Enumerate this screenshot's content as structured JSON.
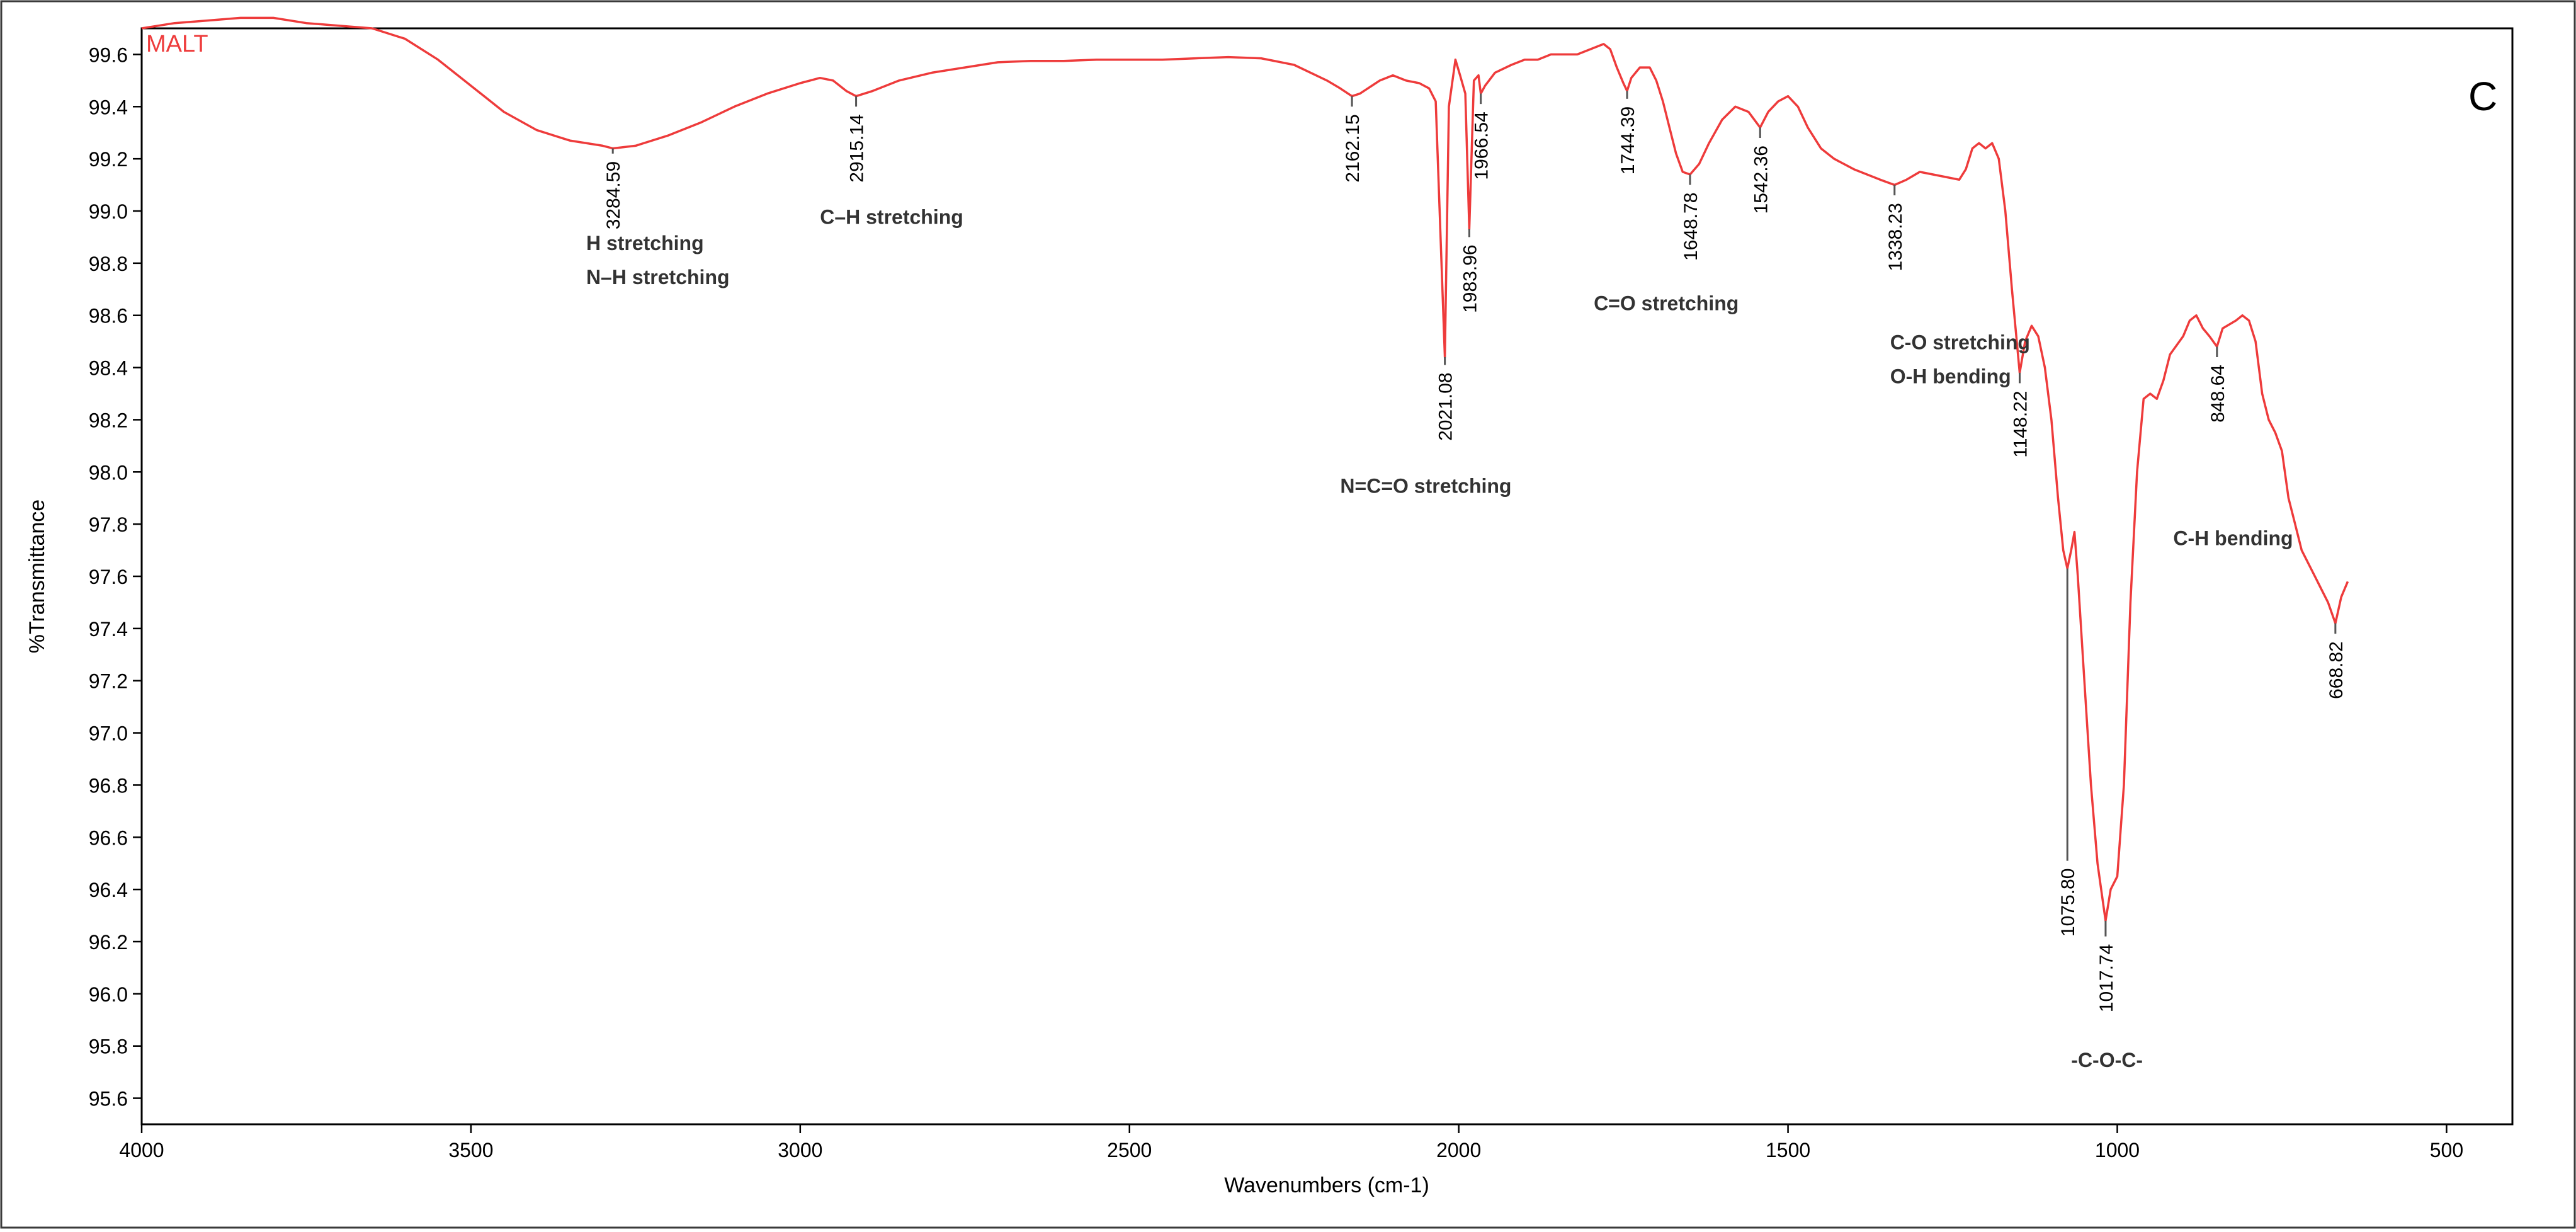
{
  "chart_data": {
    "type": "line",
    "title": "MALT",
    "panel_label": "C",
    "xlabel": "Wavenumbers (cm-1)",
    "ylabel": "%Transmittance",
    "xlim": [
      4000,
      400
    ],
    "ylim": [
      95.5,
      99.7
    ],
    "x_ticks": [
      4000,
      3500,
      3000,
      2500,
      2000,
      1500,
      1000,
      500
    ],
    "y_ticks": [
      "95.6",
      "95.8",
      "96.0",
      "96.2",
      "96.4",
      "96.6",
      "96.8",
      "97.0",
      "97.2",
      "97.4",
      "97.6",
      "97.8",
      "98.0",
      "98.2",
      "98.4",
      "98.6",
      "98.8",
      "99.0",
      "99.2",
      "99.4",
      "99.6"
    ],
    "grid": false,
    "series": [
      {
        "name": "MALT",
        "color": "#ee3b3b",
        "points": [
          [
            4000,
            99.7
          ],
          [
            3950,
            99.72
          ],
          [
            3900,
            99.73
          ],
          [
            3850,
            99.74
          ],
          [
            3800,
            99.74
          ],
          [
            3750,
            99.72
          ],
          [
            3700,
            99.71
          ],
          [
            3650,
            99.7
          ],
          [
            3600,
            99.66
          ],
          [
            3550,
            99.58
          ],
          [
            3500,
            99.48
          ],
          [
            3450,
            99.38
          ],
          [
            3400,
            99.31
          ],
          [
            3350,
            99.27
          ],
          [
            3300,
            99.25
          ],
          [
            3284.59,
            99.24
          ],
          [
            3250,
            99.25
          ],
          [
            3200,
            99.29
          ],
          [
            3150,
            99.34
          ],
          [
            3100,
            99.4
          ],
          [
            3050,
            99.45
          ],
          [
            3000,
            99.49
          ],
          [
            2970,
            99.51
          ],
          [
            2950,
            99.5
          ],
          [
            2930,
            99.46
          ],
          [
            2915.14,
            99.44
          ],
          [
            2890,
            99.46
          ],
          [
            2850,
            99.5
          ],
          [
            2800,
            99.53
          ],
          [
            2750,
            99.55
          ],
          [
            2700,
            99.57
          ],
          [
            2650,
            99.575
          ],
          [
            2600,
            99.575
          ],
          [
            2550,
            99.58
          ],
          [
            2500,
            99.58
          ],
          [
            2450,
            99.58
          ],
          [
            2400,
            99.585
          ],
          [
            2350,
            99.59
          ],
          [
            2300,
            99.585
          ],
          [
            2250,
            99.56
          ],
          [
            2200,
            99.5
          ],
          [
            2180,
            99.47
          ],
          [
            2162.15,
            99.44
          ],
          [
            2150,
            99.45
          ],
          [
            2120,
            99.5
          ],
          [
            2100,
            99.52
          ],
          [
            2080,
            99.5
          ],
          [
            2060,
            99.49
          ],
          [
            2045,
            99.47
          ],
          [
            2035,
            99.42
          ],
          [
            2021.08,
            98.44
          ],
          [
            2015,
            99.4
          ],
          [
            2005,
            99.58
          ],
          [
            1998,
            99.52
          ],
          [
            1990,
            99.45
          ],
          [
            1983.96,
            98.93
          ],
          [
            1977,
            99.5
          ],
          [
            1970,
            99.52
          ],
          [
            1966.54,
            99.45
          ],
          [
            1960,
            99.48
          ],
          [
            1945,
            99.53
          ],
          [
            1920,
            99.56
          ],
          [
            1900,
            99.58
          ],
          [
            1880,
            99.58
          ],
          [
            1860,
            99.6
          ],
          [
            1840,
            99.6
          ],
          [
            1820,
            99.6
          ],
          [
            1800,
            99.62
          ],
          [
            1780,
            99.64
          ],
          [
            1770,
            99.62
          ],
          [
            1760,
            99.55
          ],
          [
            1750,
            99.49
          ],
          [
            1744.39,
            99.46
          ],
          [
            1738,
            99.51
          ],
          [
            1725,
            99.55
          ],
          [
            1710,
            99.55
          ],
          [
            1700,
            99.5
          ],
          [
            1690,
            99.42
          ],
          [
            1680,
            99.32
          ],
          [
            1670,
            99.22
          ],
          [
            1660,
            99.15
          ],
          [
            1648.78,
            99.14
          ],
          [
            1635,
            99.18
          ],
          [
            1620,
            99.26
          ],
          [
            1600,
            99.35
          ],
          [
            1580,
            99.4
          ],
          [
            1560,
            99.38
          ],
          [
            1542.36,
            99.32
          ],
          [
            1530,
            99.38
          ],
          [
            1515,
            99.42
          ],
          [
            1500,
            99.44
          ],
          [
            1485,
            99.4
          ],
          [
            1470,
            99.32
          ],
          [
            1450,
            99.24
          ],
          [
            1430,
            99.2
          ],
          [
            1400,
            99.16
          ],
          [
            1380,
            99.14
          ],
          [
            1360,
            99.12
          ],
          [
            1338.23,
            99.1
          ],
          [
            1320,
            99.12
          ],
          [
            1300,
            99.15
          ],
          [
            1280,
            99.14
          ],
          [
            1260,
            99.13
          ],
          [
            1240,
            99.12
          ],
          [
            1230,
            99.16
          ],
          [
            1220,
            99.24
          ],
          [
            1210,
            99.26
          ],
          [
            1200,
            99.24
          ],
          [
            1190,
            99.26
          ],
          [
            1180,
            99.2
          ],
          [
            1170,
            99.0
          ],
          [
            1160,
            98.7
          ],
          [
            1148.22,
            98.38
          ],
          [
            1140,
            98.5
          ],
          [
            1130,
            98.56
          ],
          [
            1120,
            98.52
          ],
          [
            1110,
            98.4
          ],
          [
            1100,
            98.2
          ],
          [
            1090,
            97.9
          ],
          [
            1082,
            97.7
          ],
          [
            1075.8,
            97.63
          ],
          [
            1070,
            97.7
          ],
          [
            1065,
            97.77
          ],
          [
            1060,
            97.6
          ],
          [
            1050,
            97.2
          ],
          [
            1040,
            96.8
          ],
          [
            1030,
            96.5
          ],
          [
            1017.74,
            96.28
          ],
          [
            1010,
            96.4
          ],
          [
            1000,
            96.45
          ],
          [
            990,
            96.8
          ],
          [
            980,
            97.5
          ],
          [
            970,
            98.0
          ],
          [
            960,
            98.28
          ],
          [
            950,
            98.3
          ],
          [
            940,
            98.28
          ],
          [
            930,
            98.35
          ],
          [
            920,
            98.45
          ],
          [
            900,
            98.52
          ],
          [
            890,
            98.58
          ],
          [
            880,
            98.6
          ],
          [
            870,
            98.55
          ],
          [
            860,
            98.52
          ],
          [
            848.64,
            98.48
          ],
          [
            840,
            98.55
          ],
          [
            820,
            98.58
          ],
          [
            810,
            98.6
          ],
          [
            800,
            98.58
          ],
          [
            790,
            98.5
          ],
          [
            780,
            98.3
          ],
          [
            770,
            98.2
          ],
          [
            760,
            98.15
          ],
          [
            750,
            98.08
          ],
          [
            740,
            97.9
          ],
          [
            730,
            97.8
          ],
          [
            720,
            97.7
          ],
          [
            700,
            97.6
          ],
          [
            690,
            97.55
          ],
          [
            680,
            97.5
          ],
          [
            668.82,
            97.42
          ],
          [
            660,
            97.52
          ],
          [
            650,
            97.58
          ]
        ]
      }
    ],
    "peaks": [
      {
        "x": 3284.59,
        "label": "3284.59",
        "line_to": 99.22
      },
      {
        "x": 2915.14,
        "label": "2915.14",
        "line_to": 99.4
      },
      {
        "x": 2162.15,
        "label": "2162.15",
        "line_to": 99.4
      },
      {
        "x": 2021.08,
        "label": "2021.08",
        "line_to": 98.41
      },
      {
        "x": 1983.96,
        "label": "1983.96",
        "line_to": 98.9
      },
      {
        "x": 1966.54,
        "label": "1966.54",
        "line_to": 99.41
      },
      {
        "x": 1744.39,
        "label": "1744.39",
        "line_to": 99.43
      },
      {
        "x": 1648.78,
        "label": "1648.78",
        "line_to": 99.1
      },
      {
        "x": 1542.36,
        "label": "1542.36",
        "line_to": 99.28
      },
      {
        "x": 1338.23,
        "label": "1338.23",
        "line_to": 99.06
      },
      {
        "x": 1148.22,
        "label": "1148.22",
        "line_to": 98.34
      },
      {
        "x": 1075.8,
        "label": "1075.80",
        "line_to": 96.51
      },
      {
        "x": 1017.74,
        "label": "1017.74",
        "line_to": 96.22
      },
      {
        "x": 848.64,
        "label": "848.64",
        "line_to": 98.44
      },
      {
        "x": 668.82,
        "label": "668.82",
        "line_to": 97.38
      }
    ],
    "annotations": [
      {
        "text": "H stretching",
        "x": 3325,
        "y": 98.85
      },
      {
        "text": "N–H stretching",
        "x": 3325,
        "y": 98.72
      },
      {
        "text": "C–H stretching",
        "x": 2970,
        "y": 98.95
      },
      {
        "text": "N=C=O stretching",
        "x": 2180,
        "y": 97.92
      },
      {
        "text": "C=O stretching",
        "x": 1795,
        "y": 98.62
      },
      {
        "text": "C-O stretching",
        "x": 1345,
        "y": 98.47
      },
      {
        "text": "O-H bending",
        "x": 1345,
        "y": 98.34
      },
      {
        "text": "C-H bending",
        "x": 915,
        "y": 97.72
      },
      {
        "text": "-C-O-C-",
        "x": 1070,
        "y": 95.72
      }
    ]
  }
}
